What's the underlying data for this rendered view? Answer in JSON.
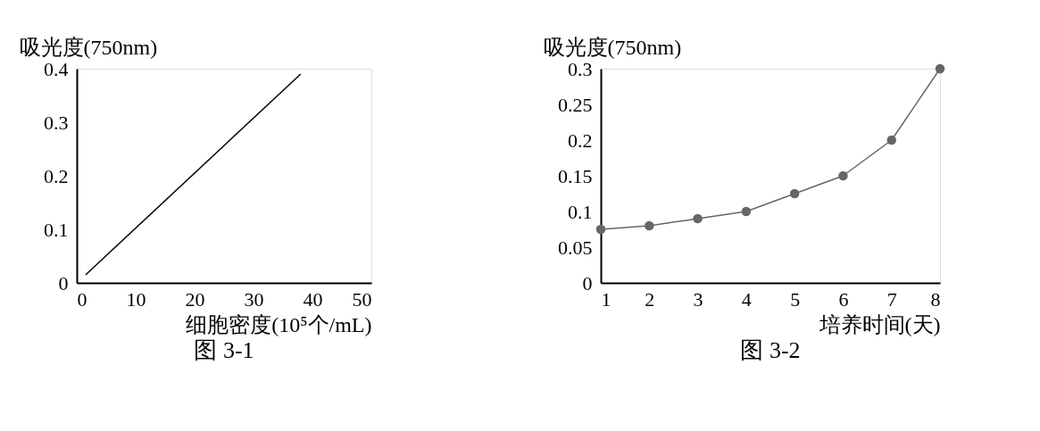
{
  "chart_data": [
    {
      "type": "line",
      "title": "图 3-1",
      "xlabel": "细胞密度(10⁵个/mL)",
      "ylabel": "吸光度(750nm)",
      "x": [
        1.5,
        38
      ],
      "series": [
        {
          "color": "#000000",
          "values": [
            0.015,
            0.39
          ]
        }
      ],
      "xlim": [
        0,
        50
      ],
      "xticks": [
        0,
        10,
        20,
        30,
        40,
        50
      ],
      "ylim": [
        0,
        0.4
      ],
      "yticks": [
        0,
        0.1,
        0.2,
        0.3,
        0.4
      ],
      "grid": false,
      "marker": "none",
      "line_style": "solid"
    },
    {
      "type": "line",
      "title": "图 3-2",
      "xlabel": "培养时间(天)",
      "ylabel": "吸光度(750nm)",
      "x": [
        1,
        2,
        3,
        4,
        5,
        6,
        7,
        8
      ],
      "series": [
        {
          "color": "#666666",
          "values": [
            0.075,
            0.08,
            0.09,
            0.1,
            0.125,
            0.15,
            0.2,
            0.3
          ]
        }
      ],
      "xlim": [
        1,
        8
      ],
      "xticks": [
        1,
        2,
        3,
        4,
        5,
        6,
        7,
        8
      ],
      "ylim": [
        0,
        0.3
      ],
      "yticks": [
        0,
        0.05,
        0.1,
        0.15,
        0.2,
        0.25,
        0.3
      ],
      "grid": false,
      "marker": "circle",
      "line_style": "solid"
    }
  ]
}
